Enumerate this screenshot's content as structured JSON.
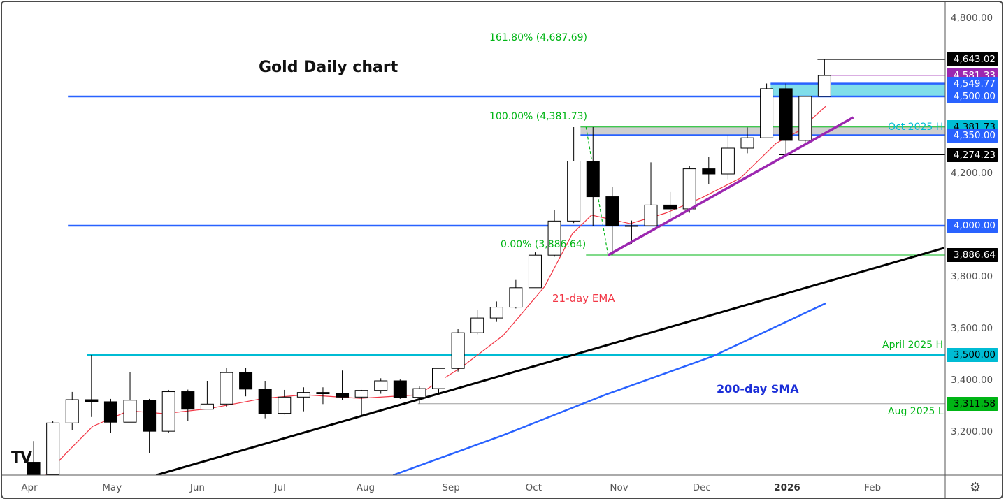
{
  "title": "Gold Daily chart",
  "colors": {
    "up": "#ffffff",
    "down": "#000000",
    "ema": "#f23645",
    "sma": "#2962ff",
    "support": "#2962ff",
    "april_high": "#00bcd4",
    "fib": "#00b515",
    "trend_purple": "#9c27b0",
    "trend_black": "#000000"
  },
  "chart_data": {
    "type": "candlestick",
    "title": "Gold Daily chart",
    "ylim": [
      3035,
      4870
    ],
    "y_ticks": [
      3200,
      3400,
      3600,
      3800,
      4200,
      4800
    ],
    "x_ticks": [
      {
        "date": "2025-04-01",
        "label": "Apr"
      },
      {
        "date": "2025-05-01",
        "label": "May"
      },
      {
        "date": "2025-06-01",
        "label": "Jun"
      },
      {
        "date": "2025-07-01",
        "label": "Jul"
      },
      {
        "date": "2025-08-01",
        "label": "Aug"
      },
      {
        "date": "2025-09-01",
        "label": "Sep"
      },
      {
        "date": "2025-10-01",
        "label": "Oct"
      },
      {
        "date": "2025-11-01",
        "label": "Nov"
      },
      {
        "date": "2025-12-01",
        "label": "Dec"
      },
      {
        "date": "2026-01-01",
        "label": "2026",
        "bold": true
      },
      {
        "date": "2026-02-01",
        "label": "Feb"
      }
    ],
    "candles_weekly_approx": [
      [
        "2025-03-31",
        3085,
        3167,
        3015,
        3037
      ],
      [
        "2025-04-07",
        3037,
        3245,
        2990,
        3237
      ],
      [
        "2025-04-14",
        3237,
        3357,
        3210,
        3327
      ],
      [
        "2025-04-21",
        3327,
        3500,
        3260,
        3319
      ],
      [
        "2025-04-28",
        3319,
        3330,
        3200,
        3240
      ],
      [
        "2025-05-05",
        3240,
        3435,
        3240,
        3325
      ],
      [
        "2025-05-12",
        3325,
        3330,
        3120,
        3205
      ],
      [
        "2025-05-19",
        3205,
        3365,
        3200,
        3358
      ],
      [
        "2025-05-26",
        3358,
        3366,
        3245,
        3290
      ],
      [
        "2025-06-02",
        3290,
        3400,
        3290,
        3310
      ],
      [
        "2025-06-09",
        3310,
        3450,
        3300,
        3432
      ],
      [
        "2025-06-16",
        3432,
        3450,
        3340,
        3368
      ],
      [
        "2025-06-23",
        3368,
        3400,
        3255,
        3274
      ],
      [
        "2025-06-30",
        3274,
        3365,
        3270,
        3337
      ],
      [
        "2025-07-07",
        3337,
        3375,
        3282,
        3355
      ],
      [
        "2025-07-14",
        3355,
        3375,
        3310,
        3350
      ],
      [
        "2025-07-21",
        3350,
        3440,
        3325,
        3337
      ],
      [
        "2025-07-28",
        3337,
        3365,
        3268,
        3363
      ],
      [
        "2025-08-04",
        3363,
        3410,
        3350,
        3400
      ],
      [
        "2025-08-11",
        3400,
        3405,
        3330,
        3336
      ],
      [
        "2025-08-18",
        3336,
        3378,
        3312,
        3370
      ],
      [
        "2025-08-25",
        3370,
        3450,
        3350,
        3448
      ],
      [
        "2025-09-01",
        3448,
        3600,
        3436,
        3586
      ],
      [
        "2025-09-08",
        3586,
        3675,
        3580,
        3643
      ],
      [
        "2025-09-15",
        3643,
        3707,
        3628,
        3685
      ],
      [
        "2025-09-22",
        3685,
        3790,
        3680,
        3760
      ],
      [
        "2025-09-29",
        3760,
        3897,
        3760,
        3886
      ],
      [
        "2025-10-06",
        3886,
        4060,
        3880,
        4018
      ],
      [
        "2025-10-13",
        4018,
        4381,
        4010,
        4250
      ],
      [
        "2025-10-20",
        4250,
        4381,
        4000,
        4112
      ],
      [
        "2025-10-27",
        4112,
        4150,
        3886,
        4000
      ],
      [
        "2025-11-03",
        4000,
        4020,
        3930,
        4000
      ],
      [
        "2025-11-10",
        4000,
        4245,
        4000,
        4080
      ],
      [
        "2025-11-17",
        4080,
        4130,
        4030,
        4065
      ],
      [
        "2025-11-24",
        4065,
        4230,
        4050,
        4220
      ],
      [
        "2025-12-01",
        4220,
        4265,
        4160,
        4200
      ],
      [
        "2025-12-08",
        4200,
        4350,
        4180,
        4300
      ],
      [
        "2025-12-15",
        4300,
        4380,
        4280,
        4340
      ],
      [
        "2025-12-22",
        4340,
        4550,
        4340,
        4530
      ],
      [
        "2025-12-29",
        4530,
        4550,
        4274,
        4330
      ],
      [
        "2026-01-05",
        4330,
        4500,
        4310,
        4500
      ],
      [
        "2026-01-12",
        4500,
        4643,
        4500,
        4581
      ]
    ],
    "ema21": [
      [
        "2025-04-07",
        3035
      ],
      [
        "2025-04-14",
        3116
      ],
      [
        "2025-04-24",
        3224
      ],
      [
        "2025-05-07",
        3284
      ],
      [
        "2025-05-20",
        3273
      ],
      [
        "2025-06-05",
        3292
      ],
      [
        "2025-06-25",
        3332
      ],
      [
        "2025-07-10",
        3346
      ],
      [
        "2025-07-30",
        3332
      ],
      [
        "2025-08-20",
        3346
      ],
      [
        "2025-09-05",
        3454
      ],
      [
        "2025-09-20",
        3576
      ],
      [
        "2025-10-05",
        3765
      ],
      [
        "2025-10-15",
        3968
      ],
      [
        "2025-10-22",
        4041
      ],
      [
        "2025-11-05",
        4008
      ],
      [
        "2025-11-18",
        4049
      ],
      [
        "2025-12-01",
        4108
      ],
      [
        "2025-12-15",
        4184
      ],
      [
        "2025-12-28",
        4319
      ],
      [
        "2026-01-05",
        4365
      ],
      [
        "2026-01-15",
        4462
      ]
    ],
    "sma200": [
      [
        "2025-08-11",
        3035
      ],
      [
        "2025-09-20",
        3190
      ],
      [
        "2025-10-27",
        3346
      ],
      [
        "2025-12-05",
        3495
      ],
      [
        "2026-01-15",
        3700
      ]
    ],
    "trendlines": [
      {
        "color": "black",
        "points": [
          [
            "2025-05-17",
            3035
          ],
          [
            "2026-02-27",
            3914
          ]
        ]
      },
      {
        "color": "purple",
        "points": [
          [
            "2025-10-28",
            3886
          ],
          [
            "2026-01-25",
            4419
          ]
        ]
      }
    ],
    "levels": [
      {
        "value": 4643.02,
        "label": "4,643.02",
        "from": "2026-01-12",
        "line": "#000000",
        "badge": "#000000"
      },
      {
        "value": 4581.33,
        "label": "4,581.33",
        "from": "2026-01-15",
        "line": "#9c27b0",
        "badge": "#9c27b0"
      },
      {
        "value": 4549.77,
        "label": "4,549.77",
        "from": "2025-12-26",
        "line": "#2962ff",
        "badge": "#2962ff"
      },
      {
        "value": 4500.0,
        "label": "4,500.00",
        "from": "2025-04-15",
        "line": "#2962ff",
        "badge": "#2962ff"
      },
      {
        "value": 4381.73,
        "label": "4,381.73",
        "from": "2025-10-18",
        "line": "#00b515",
        "badge": "#00bcd4",
        "dark": true
      },
      {
        "value": 4350.0,
        "label": "4,350.00",
        "from": "2025-10-18",
        "line": "#2962ff",
        "badge": "#2962ff"
      },
      {
        "value": 4274.23,
        "label": "4,274.23",
        "from": "2025-12-29",
        "line": "#000000",
        "badge": "#000000"
      },
      {
        "value": 4000.0,
        "label": "4,000.00",
        "from": "2025-04-15",
        "line": "#2962ff",
        "badge": "#2962ff"
      },
      {
        "value": 3886.64,
        "label": "3,886.64",
        "from": "2025-10-20",
        "line": "#00b515",
        "badge": "#000000"
      },
      {
        "value": 3500.0,
        "label": "3,500.00",
        "from": "2025-04-22",
        "line": "#00bcd4",
        "badge": "#00bcd4",
        "dark": true
      },
      {
        "value": 3311.58,
        "label": "3,311.58",
        "from": "2025-08-20",
        "line": "#9e9e9e",
        "badge": "#00b515",
        "dark": true
      },
      {
        "value": 4687.69,
        "label": "",
        "from": "2025-10-20",
        "line": "#00b515"
      }
    ],
    "zones": [
      {
        "from": "2025-12-26",
        "low": 4500,
        "high": 4549.77,
        "color": "#80deea"
      },
      {
        "from": "2025-10-18",
        "low": 4350,
        "high": 4381.73,
        "color": "#cfcfcf"
      }
    ],
    "annotations": {
      "fib_161": "161.80% (4,687.69)",
      "fib_100": "100.00% (4,381.73)",
      "fib_0": "0.00% (3,886.64)",
      "oct_high": "Oct 2025 H",
      "april_high": "April 2025 H",
      "aug_low": "Aug 2025 L",
      "ema_label": "21-day EMA",
      "sma_label": "200-day SMA"
    }
  },
  "icons": {
    "logo": "tradingview-logo",
    "settings": "gear-icon"
  },
  "logo_text": "TV"
}
